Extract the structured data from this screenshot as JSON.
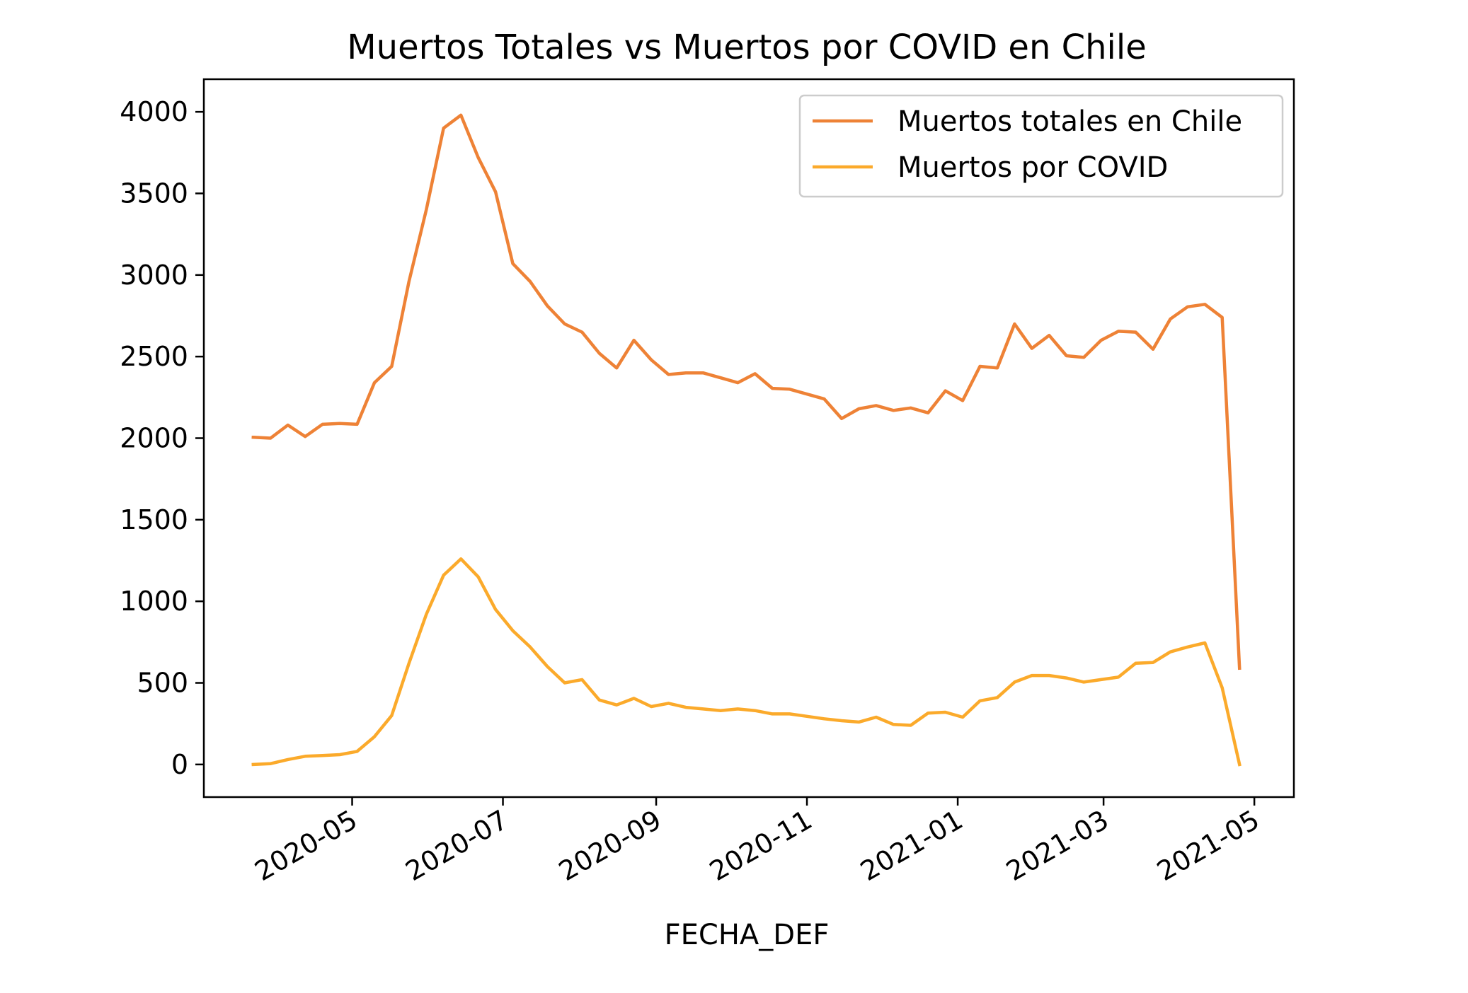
{
  "chart_data": {
    "type": "line",
    "title": "Muertos Totales vs Muertos por COVID en Chile",
    "xlabel": "FECHA_DEF",
    "ylabel": "",
    "xlim": [
      "2020-03-02",
      "2021-05-17"
    ],
    "ylim": [
      -200,
      4200
    ],
    "x_ticks": [
      "2020-05",
      "2020-07",
      "2020-09",
      "2020-11",
      "2021-01",
      "2021-03",
      "2021-05"
    ],
    "y_ticks": [
      0,
      500,
      1000,
      1500,
      2000,
      2500,
      3000,
      3500,
      4000
    ],
    "grid": false,
    "legend_position": "top-right",
    "x": [
      "2020-03-22",
      "2020-03-29",
      "2020-04-05",
      "2020-04-12",
      "2020-04-19",
      "2020-04-26",
      "2020-05-03",
      "2020-05-10",
      "2020-05-17",
      "2020-05-24",
      "2020-05-31",
      "2020-06-07",
      "2020-06-14",
      "2020-06-21",
      "2020-06-28",
      "2020-07-05",
      "2020-07-12",
      "2020-07-19",
      "2020-07-26",
      "2020-08-02",
      "2020-08-09",
      "2020-08-16",
      "2020-08-23",
      "2020-08-30",
      "2020-09-06",
      "2020-09-13",
      "2020-09-20",
      "2020-09-27",
      "2020-10-04",
      "2020-10-11",
      "2020-10-18",
      "2020-10-25",
      "2020-11-01",
      "2020-11-08",
      "2020-11-15",
      "2020-11-22",
      "2020-11-29",
      "2020-12-06",
      "2020-12-13",
      "2020-12-20",
      "2020-12-27",
      "2021-01-03",
      "2021-01-10",
      "2021-01-17",
      "2021-01-24",
      "2021-01-31",
      "2021-02-07",
      "2021-02-14",
      "2021-02-21",
      "2021-02-28",
      "2021-03-07",
      "2021-03-14",
      "2021-03-21",
      "2021-03-28",
      "2021-04-04",
      "2021-04-11",
      "2021-04-18",
      "2021-04-25"
    ],
    "series": [
      {
        "name": "Muertos totales en Chile",
        "color": "#ee8236",
        "values": [
          2005,
          2000,
          2080,
          2010,
          2085,
          2090,
          2085,
          2340,
          2440,
          2960,
          3400,
          3900,
          3980,
          3720,
          3510,
          3070,
          2960,
          2810,
          2700,
          2650,
          2520,
          2430,
          2600,
          2480,
          2390,
          2400,
          2400,
          2370,
          2340,
          2395,
          2305,
          2300,
          2270,
          2240,
          2120,
          2180,
          2200,
          2170,
          2185,
          2155,
          2290,
          2230,
          2440,
          2430,
          2700,
          2550,
          2630,
          2505,
          2495,
          2600,
          2655,
          2650,
          2545,
          2730,
          2805,
          2820,
          2740,
          590
        ]
      },
      {
        "name": "Muertos por COVID",
        "color": "#fbaa2b",
        "values": [
          0,
          5,
          30,
          50,
          55,
          60,
          80,
          170,
          300,
          620,
          920,
          1160,
          1260,
          1150,
          950,
          820,
          720,
          600,
          500,
          520,
          395,
          365,
          405,
          355,
          375,
          350,
          340,
          330,
          340,
          330,
          310,
          310,
          295,
          280,
          268,
          260,
          290,
          245,
          240,
          315,
          320,
          290,
          390,
          410,
          505,
          545,
          545,
          530,
          505,
          520,
          535,
          620,
          625,
          690,
          720,
          745,
          470,
          0
        ]
      }
    ]
  }
}
